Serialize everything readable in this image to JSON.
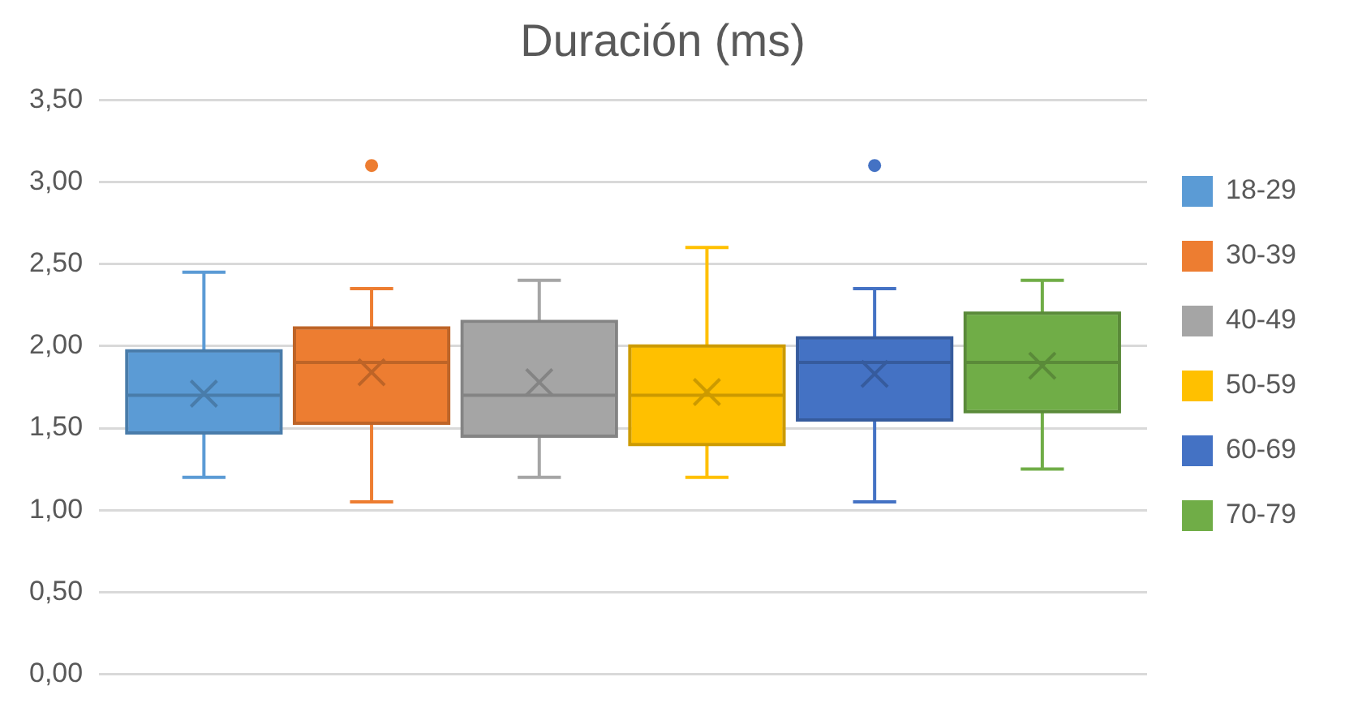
{
  "chart_data": {
    "type": "box",
    "title": "Duración (ms)",
    "categories": [
      null
    ],
    "series": [
      {
        "name": "18-29",
        "color": "#5b9bd5",
        "boxes": [
          {
            "low": 1.2,
            "q1": 1.47,
            "median": 1.7,
            "q3": 1.97,
            "high": 2.45,
            "mean": 1.71
          }
        ]
      },
      {
        "name": "30-39",
        "color": "#ed7d31",
        "boxes": [
          {
            "low": 1.05,
            "q1": 1.53,
            "median": 1.9,
            "q3": 2.11,
            "high": 2.35,
            "mean": 1.84,
            "outliers": [
              3.1
            ]
          }
        ]
      },
      {
        "name": "40-49",
        "color": "#a5a5a5",
        "boxes": [
          {
            "low": 1.2,
            "q1": 1.45,
            "median": 1.7,
            "q3": 2.15,
            "high": 2.4,
            "mean": 1.78
          }
        ]
      },
      {
        "name": "50-59",
        "color": "#ffc000",
        "boxes": [
          {
            "low": 1.2,
            "q1": 1.4,
            "median": 1.7,
            "q3": 2.0,
            "high": 2.6,
            "mean": 1.72
          }
        ]
      },
      {
        "name": "60-69",
        "color": "#4472c4",
        "boxes": [
          {
            "low": 1.05,
            "q1": 1.55,
            "median": 1.9,
            "q3": 2.05,
            "high": 2.35,
            "mean": 1.83,
            "outliers": [
              3.1
            ]
          }
        ]
      },
      {
        "name": "70-79",
        "color": "#70ad47",
        "boxes": [
          {
            "low": 1.25,
            "q1": 1.6,
            "median": 1.9,
            "q3": 2.2,
            "high": 2.4,
            "mean": 1.88
          }
        ]
      }
    ],
    "ylim": [
      0,
      3.5
    ],
    "yticks": [
      {
        "value": 0,
        "label": "0,00"
      },
      {
        "value": 0.5,
        "label": "0,50"
      },
      {
        "value": 1,
        "label": "1,00"
      },
      {
        "value": 1.5,
        "label": "1,50"
      },
      {
        "value": 2,
        "label": "2,00"
      },
      {
        "value": 2.5,
        "label": "2,50"
      },
      {
        "value": 3,
        "label": "3,00"
      },
      {
        "value": 3.5,
        "label": "3,50"
      }
    ],
    "grid": "y",
    "legend": "right",
    "tick_labels": "y"
  }
}
